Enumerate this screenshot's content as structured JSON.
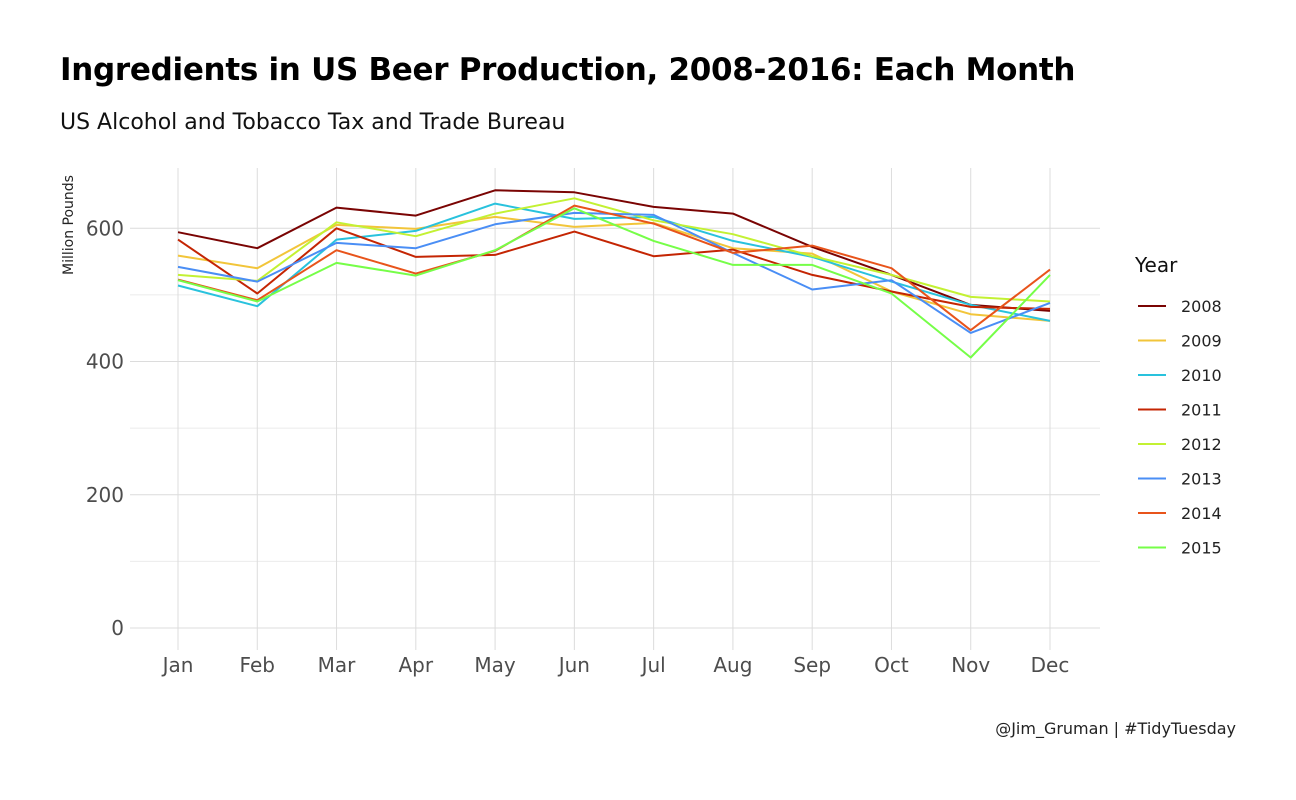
{
  "header": {
    "title": "Ingredients in US Beer Production, 2008-2016: Each Month",
    "subtitle": "US Alcohol and Tobacco Tax and Trade Bureau",
    "caption": "@Jim_Gruman | #TidyTuesday"
  },
  "chart_data": {
    "type": "line",
    "title": "Ingredients in US Beer Production, 2008-2016: Each Month",
    "subtitle": "US Alcohol and Tobacco Tax and Trade Bureau",
    "xlabel": "",
    "ylabel": "Million Pounds",
    "x": [
      "Jan",
      "Feb",
      "Mar",
      "Apr",
      "May",
      "Jun",
      "Jul",
      "Aug",
      "Sep",
      "Oct",
      "Nov",
      "Dec"
    ],
    "yticks": [
      0,
      200,
      400,
      600
    ],
    "ylim": [
      -35,
      690
    ],
    "grid": true,
    "legend": {
      "title": "Year",
      "position": "right"
    },
    "series": [
      {
        "name": "2008",
        "color": "#7a0403",
        "values": [
          594,
          570,
          631,
          619,
          657,
          654,
          632,
          622,
          572,
          530,
          485,
          476
        ]
      },
      {
        "name": "2009",
        "color": "#f2c53a",
        "values": [
          559,
          540,
          605,
          599,
          617,
          602,
          608,
          570,
          562,
          505,
          471,
          461
        ]
      },
      {
        "name": "2010",
        "color": "#29c2dd",
        "values": [
          514,
          483,
          583,
          596,
          637,
          614,
          617,
          581,
          557,
          520,
          485,
          461
        ]
      },
      {
        "name": "2011",
        "color": "#c42503",
        "values": [
          583,
          502,
          600,
          557,
          560,
          595,
          558,
          568,
          530,
          505,
          482,
          479
        ]
      },
      {
        "name": "2012",
        "color": "#c3f133",
        "values": [
          530,
          521,
          609,
          588,
          622,
          645,
          612,
          591,
          558,
          530,
          497,
          490
        ]
      },
      {
        "name": "2013",
        "color": "#4a8ef5",
        "values": [
          542,
          520,
          578,
          570,
          606,
          623,
          620,
          563,
          508,
          522,
          443,
          488
        ]
      },
      {
        "name": "2014",
        "color": "#e8541b",
        "values": [
          523,
          492,
          567,
          532,
          566,
          634,
          607,
          563,
          574,
          540,
          447,
          538
        ]
      },
      {
        "name": "2015",
        "color": "#76fe48",
        "values": [
          522,
          490,
          548,
          529,
          567,
          630,
          581,
          545,
          545,
          502,
          406,
          530
        ]
      }
    ]
  }
}
